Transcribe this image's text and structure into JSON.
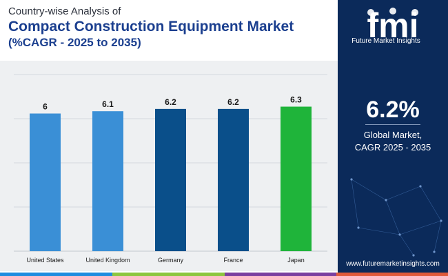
{
  "header": {
    "line1": "Country-wise Analysis of",
    "line2": "Compact Construction Equipment Market",
    "line3": "(%CAGR - 2025 to 2035)"
  },
  "chart_data": {
    "type": "bar",
    "title": "Compact Construction Equipment Market (%CAGR - 2025 to 2035)",
    "categories": [
      "United States",
      "United Kingdom",
      "Germany",
      "France",
      "Japan"
    ],
    "values": [
      6,
      6.1,
      6.2,
      6.2,
      6.3
    ],
    "labels": [
      "6",
      "6.1",
      "6.2",
      "6.2",
      "6.3"
    ],
    "colors": [
      "#3a8fd6",
      "#3a8fd6",
      "#0a4f8a",
      "#0a4f8a",
      "#1fb43a"
    ],
    "ylim": [
      0,
      7.7
    ],
    "grid": true,
    "xlabel": "",
    "ylabel": ""
  },
  "panel": {
    "logo_letters": "fmi",
    "logo_text": "Future Market Insights",
    "value": "6.2%",
    "caption_line1": "Global Market,",
    "caption_line2": "CAGR 2025 - 2035",
    "url": "www.futuremarketinsights.com"
  },
  "colors": {
    "brand_navy": "#0b2a5a",
    "title_blue": "#1b3f8f",
    "bar_light": "#3a8fd6",
    "bar_dark": "#0a4f8a",
    "bar_green": "#1fb43a",
    "stripe": [
      "#1f8de0",
      "#8dc63f",
      "#7b3fa0",
      "#e05a3a"
    ]
  }
}
